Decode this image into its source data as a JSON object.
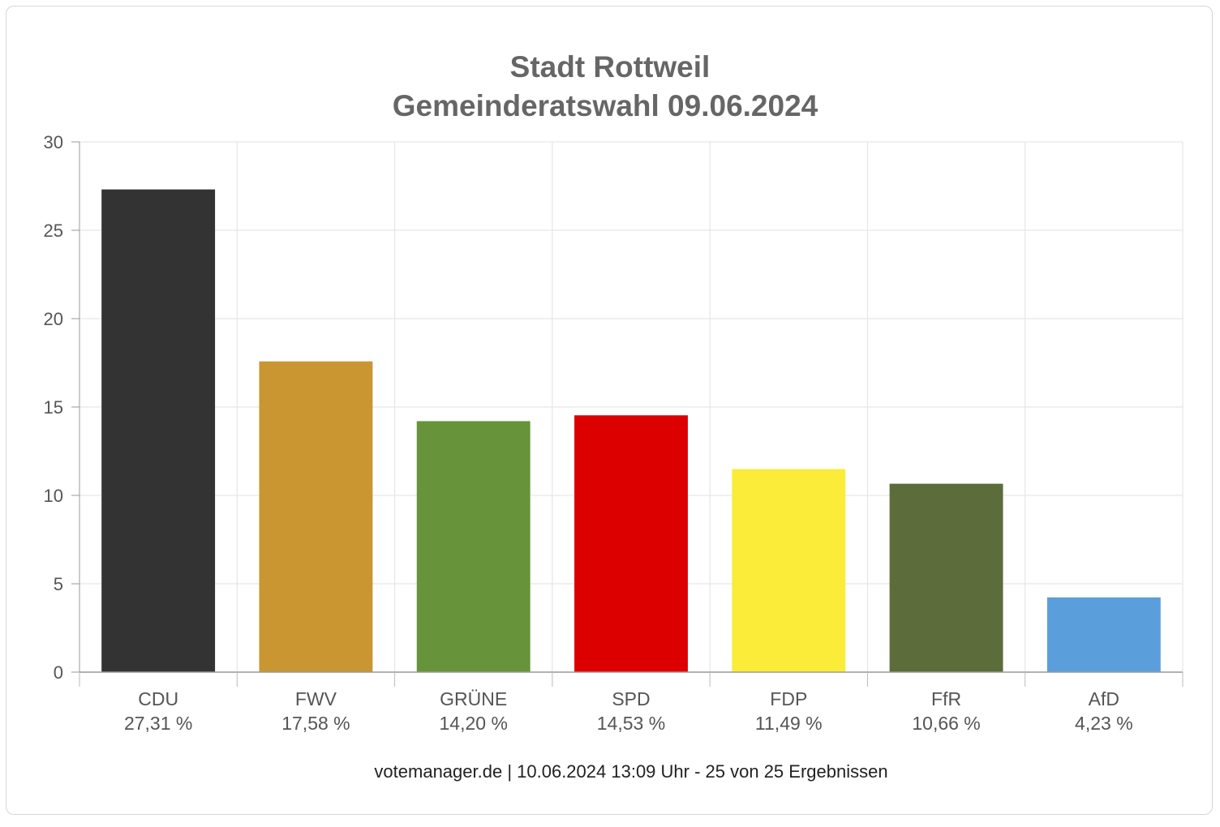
{
  "chart_data": {
    "type": "bar",
    "title": "Stadt Rottweil",
    "subtitle": "Gemeinderatswahl 09.06.2024",
    "categories": [
      "CDU",
      "FWV",
      "GRÜNE",
      "SPD",
      "FDP",
      "FfR",
      "AfD"
    ],
    "values": [
      27.31,
      17.58,
      14.2,
      14.53,
      11.49,
      10.66,
      4.23
    ],
    "value_labels": [
      "27,31 %",
      "17,58 %",
      "14,20 %",
      "14,53 %",
      "11,49 %",
      "10,66 %",
      "4,23 %"
    ],
    "colors": [
      "#333333",
      "#c99632",
      "#67933a",
      "#dc0000",
      "#fbec3a",
      "#5c6c3b",
      "#5a9fdc"
    ],
    "ylim": [
      0,
      30
    ],
    "yticks": [
      0,
      5,
      10,
      15,
      20,
      25,
      30
    ],
    "grid": true,
    "xlabel": "",
    "ylabel": ""
  },
  "footer": "votemanager.de | 10.06.2024 13:09 Uhr - 25 von 25 Ergebnissen"
}
